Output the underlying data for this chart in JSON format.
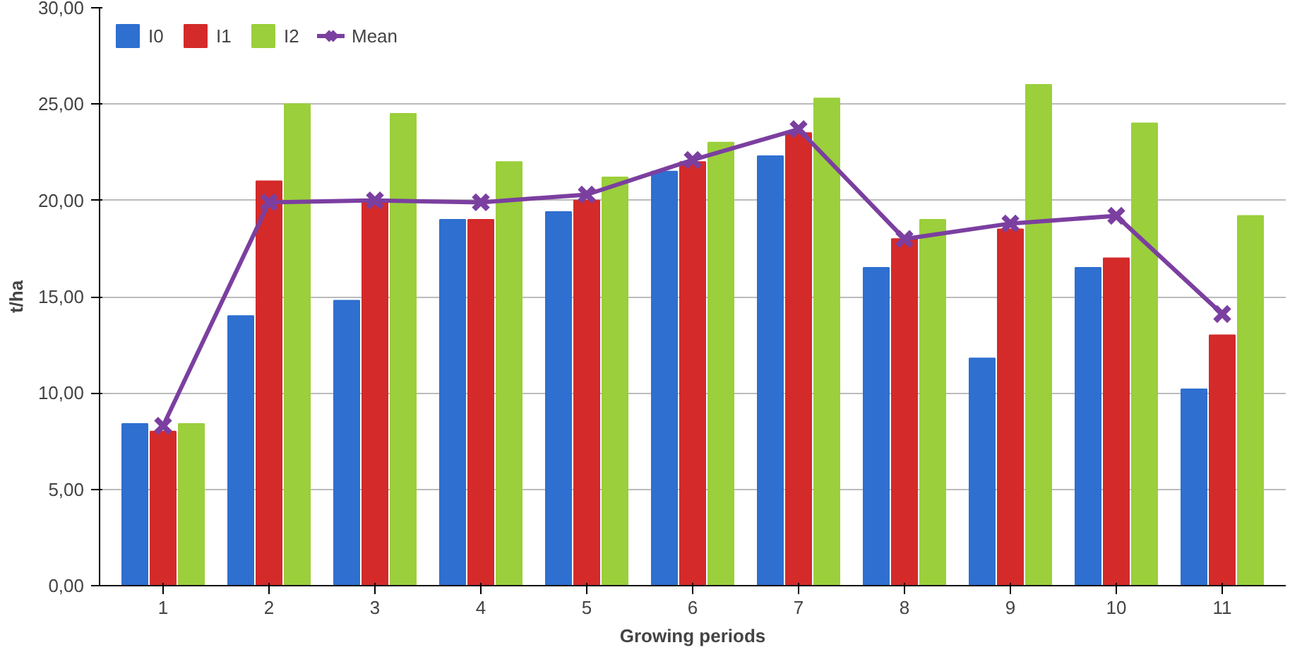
{
  "chart_data": {
    "type": "bar",
    "xlabel": "Growing periods",
    "ylabel": "t/ha",
    "categories": [
      "1",
      "2",
      "3",
      "4",
      "5",
      "6",
      "7",
      "8",
      "9",
      "10",
      "11"
    ],
    "ylim": [
      0,
      30
    ],
    "yticks": [
      {
        "value": 0,
        "label": "0,00"
      },
      {
        "value": 5,
        "label": "5,00"
      },
      {
        "value": 10,
        "label": "10,00"
      },
      {
        "value": 15,
        "label": "15,00"
      },
      {
        "value": 20,
        "label": "20,00"
      },
      {
        "value": 25,
        "label": "25,00"
      },
      {
        "value": 30,
        "label": "30,00"
      }
    ],
    "grid": "y",
    "legend": "top left",
    "series": [
      {
        "name": "I0",
        "color": "#2e6fd0",
        "values": [
          8.4,
          14.0,
          14.8,
          19.0,
          19.4,
          21.5,
          22.3,
          16.5,
          11.8,
          16.5,
          10.2
        ]
      },
      {
        "name": "I1",
        "color": "#d42a2a",
        "values": [
          8.0,
          21.0,
          20.0,
          19.0,
          20.0,
          22.0,
          23.5,
          18.0,
          18.5,
          17.0,
          13.0
        ]
      },
      {
        "name": "I2",
        "color": "#9bcf3b",
        "values": [
          8.4,
          25.0,
          24.5,
          22.0,
          21.2,
          23.0,
          25.3,
          19.0,
          26.0,
          24.0,
          19.2
        ]
      },
      {
        "name": "Mean",
        "color": "#7b3fa0",
        "type": "line",
        "marker": "cross",
        "values": [
          8.3,
          19.9,
          20.0,
          19.9,
          20.3,
          22.1,
          23.7,
          18.0,
          18.8,
          19.2,
          14.1
        ]
      }
    ]
  }
}
